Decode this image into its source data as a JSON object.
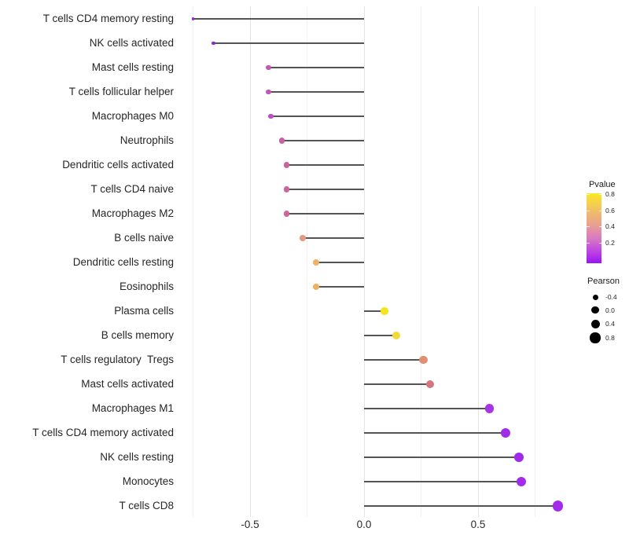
{
  "chart_data": {
    "type": "scatter",
    "subtype": "lollipop",
    "title": "",
    "xlabel": "",
    "ylabel": "",
    "xlim": [
      -0.83,
      0.93
    ],
    "grid": "vertical-only",
    "x_major_ticks": [
      -0.5,
      0.0,
      0.5
    ],
    "x_tick_labels": [
      "-0.5",
      "0.0",
      "0.5"
    ],
    "x_minor_gridlines": [
      -0.75,
      -0.25,
      0.25,
      0.75
    ],
    "series_encoding": {
      "x": "Pearson correlation",
      "color": "Pvalue",
      "size": "Pearson"
    },
    "points": [
      {
        "label": "T cells CD4 memory resting",
        "pearson": -0.75,
        "color": "#9327d6"
      },
      {
        "label": "NK cells activated",
        "pearson": -0.66,
        "color": "#8c26de"
      },
      {
        "label": "Mast cells resting",
        "pearson": -0.42,
        "color": "#c355bb"
      },
      {
        "label": "T cells follicular helper",
        "pearson": -0.42,
        "color": "#c257b9"
      },
      {
        "label": "Macrophages M0",
        "pearson": -0.41,
        "color": "#bc4ec1"
      },
      {
        "label": "Neutrophils",
        "pearson": -0.36,
        "color": "#cb5fa6"
      },
      {
        "label": "Dendritic cells activated",
        "pearson": -0.34,
        "color": "#cb629d"
      },
      {
        "label": "T cells CD4 naive",
        "pearson": -0.34,
        "color": "#cc639b"
      },
      {
        "label": "Macrophages M2",
        "pearson": -0.34,
        "color": "#cd6597"
      },
      {
        "label": "B cells naive",
        "pearson": -0.27,
        "color": "#e39a7e"
      },
      {
        "label": "Dendritic cells resting",
        "pearson": -0.21,
        "color": "#edb263"
      },
      {
        "label": "Eosinophils",
        "pearson": -0.21,
        "color": "#edb260"
      },
      {
        "label": "Plasma cells",
        "pearson": 0.09,
        "color": "#f4e51b"
      },
      {
        "label": "B cells memory",
        "pearson": 0.14,
        "color": "#f1d937"
      },
      {
        "label": "T cells regulatory  Tregs",
        "pearson": 0.26,
        "color": "#e18f70"
      },
      {
        "label": "Mast cells activated",
        "pearson": 0.29,
        "color": "#d37680"
      },
      {
        "label": "Macrophages M1",
        "pearson": 0.55,
        "color": "#a934e4"
      },
      {
        "label": "T cells CD4 memory activated",
        "pearson": 0.62,
        "color": "#a02be8"
      },
      {
        "label": "NK cells resting",
        "pearson": 0.68,
        "color": "#a129e9"
      },
      {
        "label": "Monocytes",
        "pearson": 0.69,
        "color": "#a32be9"
      },
      {
        "label": "T cells CD8",
        "pearson": 0.85,
        "color": "#a52beb"
      }
    ],
    "legends": {
      "pvalue": {
        "title": "Pvalue",
        "tick_labels": [
          "0.8",
          "0.6",
          "0.4",
          "0.2"
        ],
        "gradient_top_color": "#f9e926",
        "gradient_bottom_color": "#9a15f2",
        "position": "right"
      },
      "pearson": {
        "title": "Pearson",
        "entries": [
          {
            "label": "-0.4",
            "value": -0.4
          },
          {
            "label": "0.0",
            "value": 0.0
          },
          {
            "label": "0.4",
            "value": 0.4
          },
          {
            "label": "0.8",
            "value": 0.8
          }
        ],
        "key_color": "#000000",
        "position": "right"
      }
    }
  }
}
